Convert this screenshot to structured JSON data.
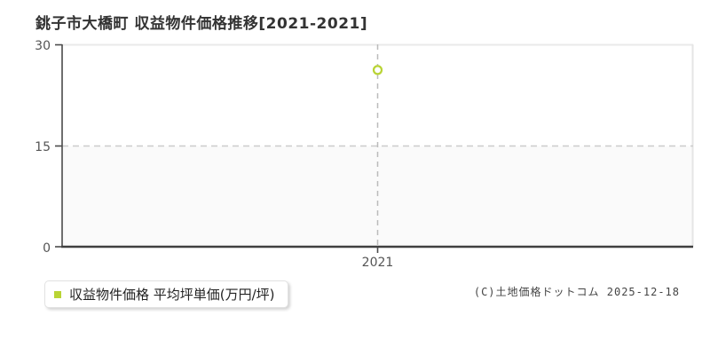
{
  "header": {
    "title": "銚子市大橋町 収益物件価格推移[2021-2021]"
  },
  "legend": {
    "label": "収益物件価格 平均坪単価(万円/坪)"
  },
  "footer": {
    "copyright": "(C)土地価格ドットコム 2025-12-18"
  },
  "colors": {
    "series": "#b9d435",
    "axis_dark": "#4a4a4a",
    "grid_dashed": "#cccccc",
    "guide_dashed": "#bbbbbb",
    "plot_border_light": "#e9e9e9",
    "lower_band_fill": "#fafafa",
    "text": "#333333"
  },
  "chart_data": {
    "type": "scatter",
    "title": "銚子市大橋町 収益物件価格推移[2021-2021]",
    "categories": [
      "2021"
    ],
    "series": [
      {
        "name": "収益物件価格 平均坪単価(万円/坪)",
        "values": [
          26.2
        ]
      }
    ],
    "xlabel": "",
    "ylabel": "平均坪単価(万円/坪)",
    "ylim": [
      0,
      30
    ],
    "yticks": [
      0,
      15,
      30
    ],
    "grid": "horizontal dashed line at y=15; vertical dashed guide at each category",
    "legend_position": "bottom-left",
    "marker": "open-circle"
  }
}
